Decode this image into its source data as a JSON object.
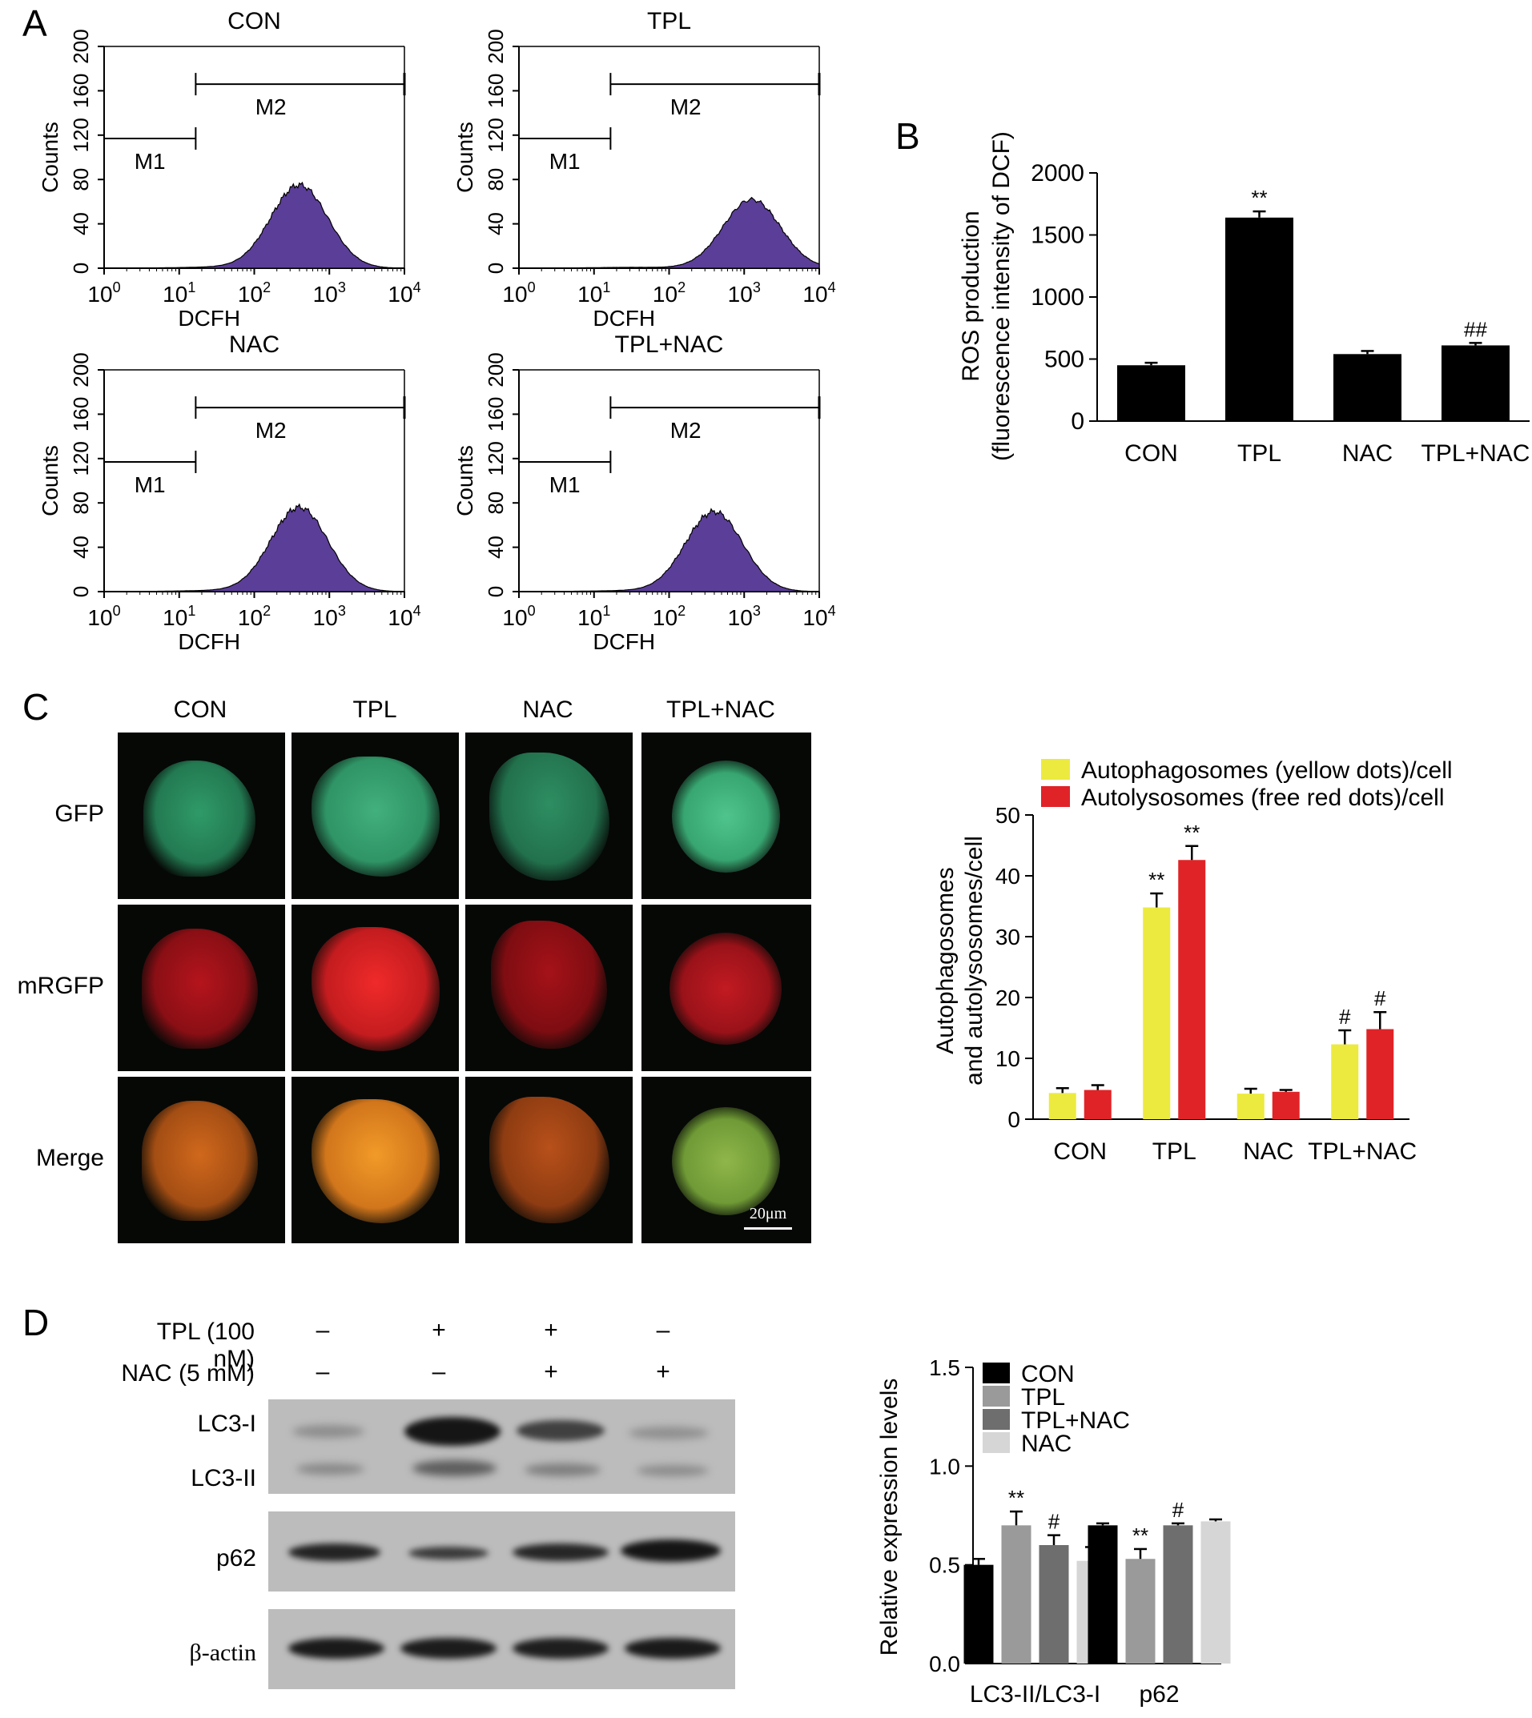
{
  "panels": {
    "a": "A",
    "b": "B",
    "c": "C",
    "d": "D"
  },
  "flow": {
    "ylabel": "Counts",
    "xlabel": "DCFH",
    "yticks": [
      "0",
      "40",
      "80",
      "120",
      "160",
      "200"
    ],
    "xticks": [
      {
        "b": "10",
        "e": "0"
      },
      {
        "b": "10",
        "e": "1"
      },
      {
        "b": "10",
        "e": "2"
      },
      {
        "b": "10",
        "e": "3"
      },
      {
        "b": "10",
        "e": "4"
      }
    ],
    "gates": {
      "m1": "M1",
      "m2": "M2"
    },
    "fill_color": "#5b3e98",
    "plots": [
      {
        "title": "CON",
        "peak": 75
      },
      {
        "title": "TPL",
        "peak": 62
      },
      {
        "title": "NAC",
        "peak": 76
      },
      {
        "title": "TPL+NAC",
        "peak": 72
      }
    ]
  },
  "chart_data": [
    {
      "type": "bar",
      "categories": [
        "CON",
        "TPL",
        "NAC",
        "TPL+NAC"
      ],
      "values": [
        450,
        1640,
        540,
        610
      ],
      "errors": [
        20,
        50,
        25,
        20
      ],
      "annotations": [
        "",
        "**",
        "",
        "##"
      ],
      "ylabel_line1": "ROS production",
      "ylabel_line2": "(fluorescence intensity of DCF)",
      "ylim": [
        0,
        2000
      ],
      "yticks": [
        "0",
        "500",
        "1000",
        "1500",
        "2000"
      ],
      "color": "#000000"
    },
    {
      "type": "bar",
      "categories": [
        "CON",
        "TPL",
        "NAC",
        "TPL+NAC"
      ],
      "ylabel_line1": "Autophagosomes",
      "ylabel_line2": "and autolysosomes/cell",
      "ylim": [
        0,
        50
      ],
      "yticks": [
        "0",
        "10",
        "20",
        "30",
        "40",
        "50"
      ],
      "legend_position": "top",
      "series": [
        {
          "name": "Autophagosomes (yellow dots)/cell",
          "color": "#ecea3e",
          "values": [
            4.3,
            34.8,
            4.2,
            12.3
          ],
          "errors": [
            0.8,
            2.3,
            0.8,
            2.3
          ],
          "annotations": [
            "",
            "**",
            "",
            "#"
          ]
        },
        {
          "name": "Autolysosomes (free red dots)/cell",
          "color": "#e02327",
          "values": [
            4.8,
            42.6,
            4.5,
            14.8
          ],
          "errors": [
            0.8,
            2.3,
            0.3,
            2.8
          ],
          "annotations": [
            "",
            "**",
            "",
            "#"
          ]
        }
      ]
    },
    {
      "type": "bar",
      "categories": [
        "LC3-II/LC3-I",
        "p62"
      ],
      "ylabel": "Relative expression levels",
      "ylim": [
        0,
        1.5
      ],
      "yticks": [
        "0.0",
        "0.5",
        "1.0",
        "1.5"
      ],
      "legend_position": "top-right",
      "series": [
        {
          "name": "CON",
          "color": "#000000",
          "values": [
            0.5,
            0.7
          ],
          "errors": [
            0.03,
            0.01
          ],
          "annotations": [
            "",
            ""
          ]
        },
        {
          "name": "TPL",
          "color": "#9a9a9a",
          "values": [
            0.7,
            0.53
          ],
          "errors": [
            0.07,
            0.05
          ],
          "annotations": [
            "**",
            "**"
          ]
        },
        {
          "name": "TPL+NAC",
          "color": "#6e6e6e",
          "values": [
            0.6,
            0.7
          ],
          "errors": [
            0.05,
            0.01
          ],
          "annotations": [
            "#",
            "#"
          ]
        },
        {
          "name": "NAC",
          "color": "#d6d6d6",
          "values": [
            0.52,
            0.72
          ],
          "errors": [
            0.07,
            0.01
          ],
          "annotations": [
            "",
            ""
          ]
        }
      ]
    }
  ],
  "microscopy": {
    "columns": [
      "CON",
      "TPL",
      "NAC",
      "TPL+NAC"
    ],
    "rows": [
      "GFP",
      "mRGFP",
      "Merge"
    ],
    "scale_bar": "20μm"
  },
  "western": {
    "treatments": [
      {
        "label": "TPL (100 nM)",
        "signs": [
          "–",
          "+",
          "+",
          "–"
        ]
      },
      {
        "label": "NAC (5 mM)",
        "signs": [
          "–",
          "–",
          "+",
          "+"
        ]
      }
    ],
    "bands": [
      "LC3-I",
      "LC3-II",
      "p62",
      "β-actin"
    ]
  }
}
